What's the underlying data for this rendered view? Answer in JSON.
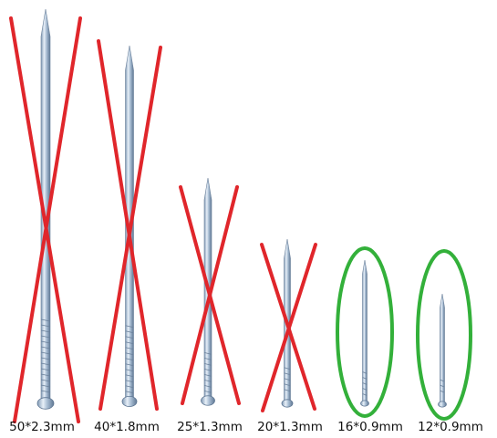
{
  "items": [
    {
      "label": "50*2.3mm"
    },
    {
      "label": "40*1.8mm"
    },
    {
      "label": "25*1.3mm"
    },
    {
      "label": "20*1.3mm"
    },
    {
      "label": "16*0.9mm"
    },
    {
      "label": "12*0.9mm"
    }
  ]
}
